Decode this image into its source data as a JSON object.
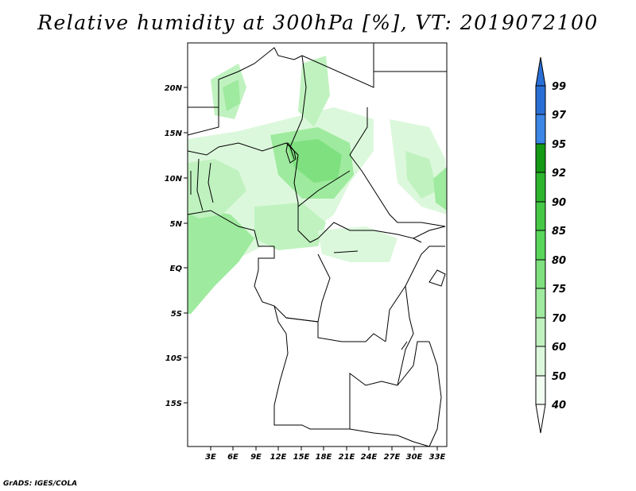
{
  "title": "Relative humidity at 300hPa [%], VT: 2019072100",
  "credit": "GrADS: IGES/COLA",
  "map": {
    "lat_ticks": [
      "20N",
      "15N",
      "10N",
      "5N",
      "EQ",
      "5S",
      "10S",
      "15S"
    ],
    "lon_ticks": [
      "3E",
      "6E",
      "9E",
      "12E",
      "15E",
      "18E",
      "21E",
      "24E",
      "27E",
      "30E",
      "33E"
    ],
    "lat_values": [
      20,
      15,
      10,
      5,
      0,
      -5,
      -10,
      -15
    ],
    "lon_values": [
      3,
      6,
      9,
      12,
      15,
      18,
      21,
      24,
      27,
      30,
      33
    ],
    "extent": {
      "lon_min": 0,
      "lon_max": 34,
      "lat_min": -20,
      "lat_max": 25
    }
  },
  "colorbar": {
    "labels": [
      "99",
      "97",
      "95",
      "92",
      "90",
      "85",
      "80",
      "75",
      "70",
      "60",
      "50",
      "40"
    ],
    "colors": [
      "#2a6fd6",
      "#3b86e6",
      "#56a4f0",
      "#149a14",
      "#2db52d",
      "#46c846",
      "#5ad65a",
      "#7ee07e",
      "#9eea9e",
      "#c0f2c0",
      "#dcf8dc",
      "#f2fdf2"
    ]
  }
}
